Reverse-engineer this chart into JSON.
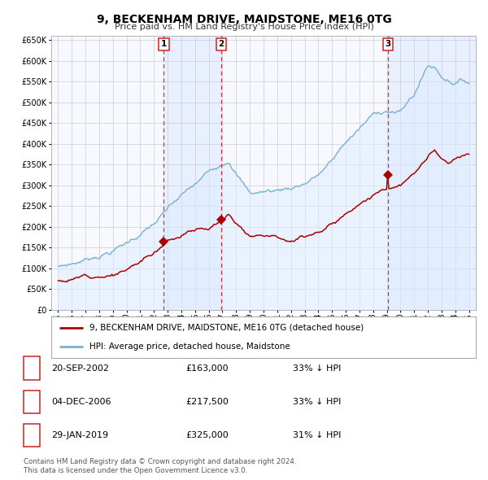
{
  "title": "9, BECKENHAM DRIVE, MAIDSTONE, ME16 0TG",
  "subtitle": "Price paid vs. HM Land Registry's House Price Index (HPI)",
  "ylim": [
    0,
    660000
  ],
  "yticks": [
    0,
    50000,
    100000,
    150000,
    200000,
    250000,
    300000,
    350000,
    400000,
    450000,
    500000,
    550000,
    600000,
    650000
  ],
  "xlim_start": 1994.5,
  "xlim_end": 2025.5,
  "sale_dates": [
    2002.72,
    2006.92,
    2019.08
  ],
  "sale_prices": [
    163000,
    217500,
    325000
  ],
  "sale_labels": [
    "1",
    "2",
    "3"
  ],
  "red_line_color": "#aa0000",
  "blue_line_color": "#7ab0d4",
  "blue_fill_color": "#ddeeff",
  "vline_color": "#cc2222",
  "grid_color": "#cccccc",
  "background_color": "#ffffff",
  "plot_bg_color": "#f8f8ff",
  "legend_label_red": "9, BECKENHAM DRIVE, MAIDSTONE, ME16 0TG (detached house)",
  "legend_label_blue": "HPI: Average price, detached house, Maidstone",
  "table_rows": [
    {
      "num": "1",
      "date": "20-SEP-2002",
      "price": "£163,000",
      "pct": "33% ↓ HPI"
    },
    {
      "num": "2",
      "date": "04-DEC-2006",
      "price": "£217,500",
      "pct": "33% ↓ HPI"
    },
    {
      "num": "3",
      "date": "29-JAN-2019",
      "price": "£325,000",
      "pct": "31% ↓ HPI"
    }
  ],
  "footnote1": "Contains HM Land Registry data © Crown copyright and database right 2024.",
  "footnote2": "This data is licensed under the Open Government Licence v3.0."
}
